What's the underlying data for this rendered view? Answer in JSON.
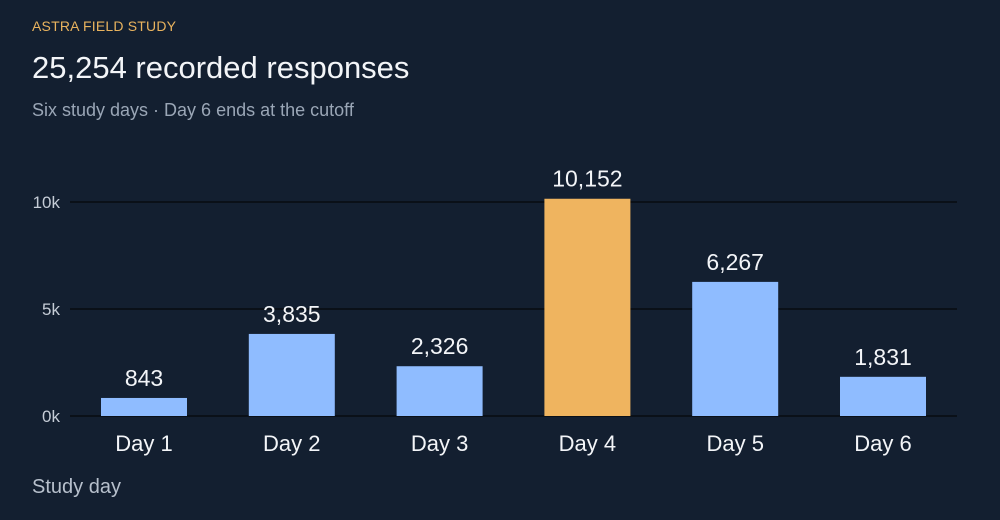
{
  "header": {
    "kicker": "ASTRA FIELD STUDY",
    "title": "25,254 recorded responses",
    "subtitle": "Six study days · Day 6 ends at the cutoff"
  },
  "colors": {
    "background": "#131f30",
    "bar": "#8fbcff",
    "highlight": "#efb45f",
    "gridline": "#000000",
    "kicker": "#e9b35e"
  },
  "chart_data": {
    "type": "bar",
    "categories": [
      "Day 1",
      "Day 2",
      "Day 3",
      "Day 4",
      "Day 5",
      "Day 6"
    ],
    "values": [
      843,
      3835,
      2326,
      10152,
      6267,
      1831
    ],
    "value_labels": [
      "843",
      "3,835",
      "2,326",
      "10,152",
      "6,267",
      "1,831"
    ],
    "highlight_category": "Day 4",
    "title": "25,254 recorded responses",
    "subtitle": "Six study days · Day 6 ends at the cutoff",
    "xlabel": "Study day",
    "ylabel": "",
    "ylim": [
      0,
      10000
    ],
    "yticks": [
      0,
      5000,
      10000
    ],
    "ytick_labels": [
      "0k",
      "5k",
      "10k"
    ],
    "grid": true,
    "legend": "none"
  }
}
